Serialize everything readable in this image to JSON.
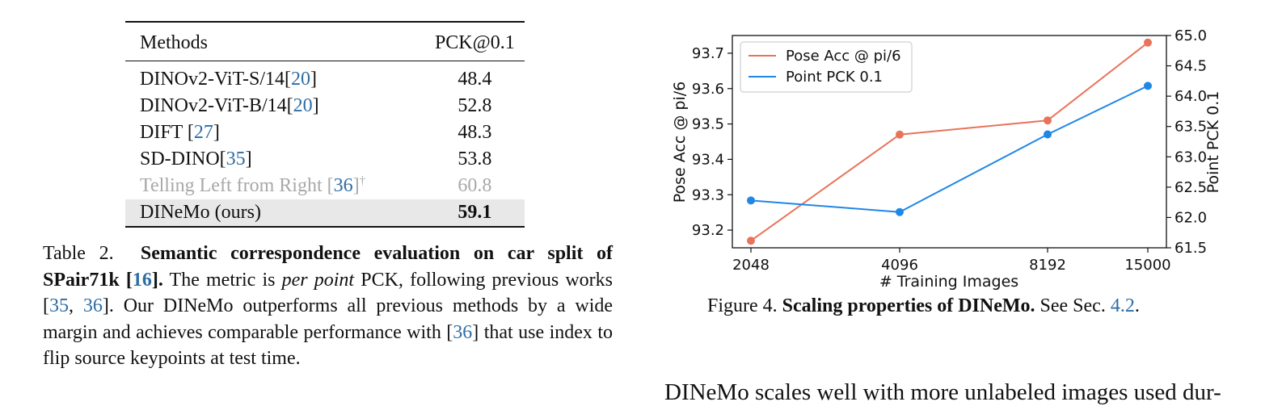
{
  "table": {
    "headers": [
      "Methods",
      "PCK@0.1"
    ],
    "rows": [
      {
        "method": "DINOv2-ViT-S/14",
        "ref": "20",
        "pre": "[",
        "post": "]",
        "value": "48.4"
      },
      {
        "method": "DINOv2-ViT-B/14",
        "ref": "20",
        "pre": "[",
        "post": "]",
        "value": "52.8"
      },
      {
        "method": "DIFT ",
        "ref": "27",
        "pre": "[",
        "post": "]",
        "value": "48.3"
      },
      {
        "method": "SD-DINO",
        "ref": "35",
        "pre": "[",
        "post": "]",
        "value": "53.8"
      },
      {
        "method": "Telling Left from Right ",
        "ref": "36",
        "pre": "[",
        "post": "]",
        "sup": "†",
        "value": "60.8"
      },
      {
        "method": "DINeMo (ours)",
        "value": "59.1"
      }
    ]
  },
  "table_caption": {
    "label": "Table 2.",
    "title": "Semantic correspondence evaluation on car split of SPair71k [",
    "title_ref": "16",
    "title_end": "].",
    "text1": " The metric is ",
    "italic": "per point",
    "text2": " PCK, following previous works [",
    "ref_a": "35",
    "sep": ", ",
    "ref_b": "36",
    "text3": "]. Our DINeMo outperforms all previous methods by a wide margin and achieves comparable performance with [",
    "ref_c": "36",
    "text4": "] that use index to flip source keypoints at test time."
  },
  "figure_caption": {
    "label": "Figure 4.",
    "title": "Scaling properties of DINeMo.",
    "text": " See Sec. ",
    "ref": "4.2",
    "end": "."
  },
  "body_text": "DINeMo scales well with more unlabeled images used dur-",
  "chart_data": {
    "type": "line",
    "categories": [
      "2048",
      "4096",
      "8192",
      "15000"
    ],
    "xlabel": "# Training Images",
    "ylabel": "Pose Acc @ pi/6",
    "ylabel_right": "Point PCK 0.1",
    "ylim": [
      93.15,
      93.75
    ],
    "ylim_right": [
      61.5,
      65.0
    ],
    "yticks": [
      "93.2",
      "93.3",
      "93.4",
      "93.5",
      "93.6",
      "93.7"
    ],
    "yticks_right": [
      "61.5",
      "62.0",
      "62.5",
      "63.0",
      "63.5",
      "64.0",
      "64.5",
      "65.0"
    ],
    "legend_placement": "top-left",
    "series": [
      {
        "name": "Pose Acc @ pi/6",
        "axis": "left",
        "color": "#e8735a",
        "values": [
          93.17,
          93.47,
          93.51,
          93.73
        ]
      },
      {
        "name": "Point PCK 0.1",
        "axis": "right",
        "color": "#1f87e6",
        "values": [
          62.28,
          62.09,
          63.37,
          64.17
        ]
      }
    ]
  }
}
